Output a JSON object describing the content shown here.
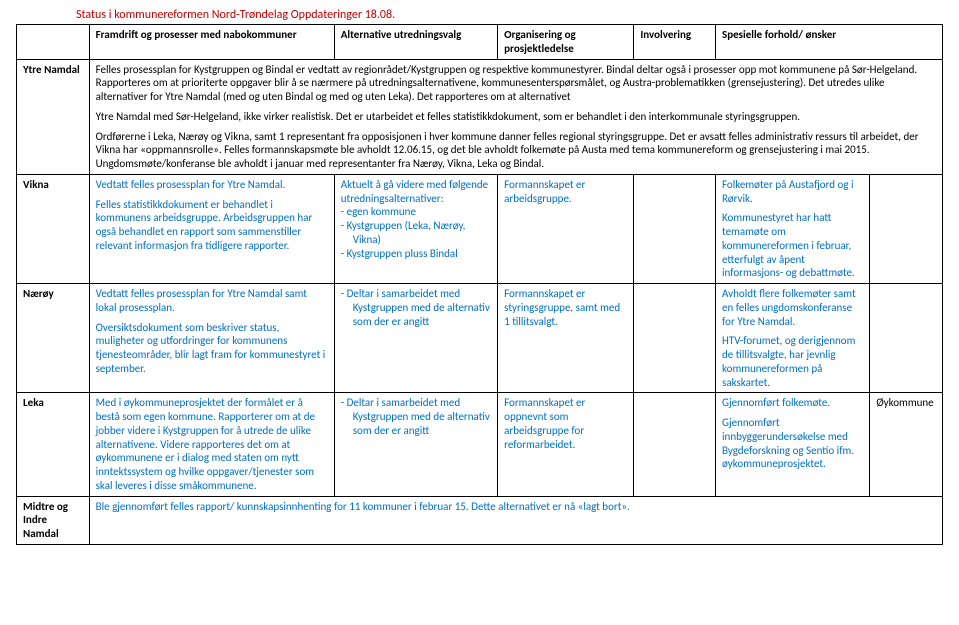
{
  "title": "Status i kommunereformen Nord-Trøndelag Oppdateringer 18.08.",
  "headers": {
    "label": "",
    "c1": "Framdrift og prosesser med nabokommuner",
    "c2": "Alternative utredningsvalg",
    "c3": "Organisering og prosjektledelse",
    "c4": "Involvering",
    "c5": "Spesielle forhold/ ønsker"
  },
  "rows": {
    "ytre": {
      "label": "Ytre Namdal",
      "full_p1": "Felles prosessplan for Kystgruppen og Bindal er vedtatt av regionrådet/Kystgruppen og respektive kommunestyrer. Bindal deltar også i prosesser opp mot kommunene på Sør-Helgeland. Rapporteres om at prioriterte oppgaver blir å se nærmere på utredningsalternativene, kommunesenterspørsmålet, og Austra-problematikken (grensejustering). Det utredes ulike alternativer for Ytre Namdal (med og uten Bindal og med og uten Leka). Det rapporteres om at alternativet",
      "full_p2": "Ytre Namdal med Sør-Helgeland, ikke virker realistisk. Det er utarbeidet et felles statistikkdokument, som er behandlet i den interkommunale styringsgruppen.",
      "full_p3": "Ordførerne i Leka, Nærøy og Vikna, samt 1 representant fra opposisjonen i hver kommune danner felles regional styringsgruppe. Det er avsatt felles administrativ ressurs til arbeidet, der Vikna har «oppmannsrolle». Felles formannskapsmøte ble avholdt 12.06.15, og det ble avholdt folkemøte på Austa med tema kommunereform og grensejustering i mai 2015. Ungdomsmøte/konferanse ble avholdt i januar med representanter fra Nærøy, Vikna, Leka og Bindal."
    },
    "vikna": {
      "label": "Vikna",
      "c1_p1": "Vedtatt felles prosessplan for Ytre Namdal.",
      "c1_p2": "Felles statistikkdokument er behandlet i kommunens arbeidsgruppe. Arbeidsgruppen har også behandlet en rapport som sammenstiller relevant informasjon fra tidligere rapporter.",
      "c2_intro": "Aktuelt å gå videre med følgende utredningsalternativer:",
      "c2_items": [
        "egen kommune",
        "Kystgruppen (Leka, Nærøy, Vikna)",
        "Kystgruppen pluss Bindal"
      ],
      "c3": "Formannskapet er arbeidsgruppe.",
      "c5_p1": "Folkemøter på Austafjord og i Rørvik.",
      "c5_p2": "Kommunestyret har hatt temamøte om kommunereformen i februar, etterfulgt av åpent informasjons- og debattmøte."
    },
    "naeroy": {
      "label": "Nærøy",
      "c1_p1": "Vedtatt felles prosessplan for Ytre Namdal samt lokal prosessplan.",
      "c1_p2": "Oversiktsdokument som beskriver status, muligheter og utfordringer for kommunens tjenesteområder, blir lagt fram for kommunestyret i september.",
      "c2_item": "Deltar i samarbeidet med Kystgruppen med de alternativ som der er angitt",
      "c3": "Formannskapet er styringsgruppe, samt med 1 tillitsvalgt.",
      "c5_p1": "Avholdt flere folkemøter samt en felles ungdomskonferanse for Ytre Namdal.",
      "c5_p2": "HTV-forumet, og derigjennom de tillitsvalgte, har jevnlig kommunereformen på sakskartet."
    },
    "leka": {
      "label": "Leka",
      "c1": "Med i øykommuneprosjektet der formålet er å bestå som egen kommune. Rapporterer om at de jobber videre i Kystgruppen for å utrede de ulike alternativene. Videre rapporteres det om at øykommunene er i dialog med staten om nytt inntektssystem og hvilke oppgaver/tjenester som skal leveres i disse småkommunene.",
      "c2_item": "Deltar i samarbeidet med Kystgruppen med de alternativ som der er angitt",
      "c3": "Formannskapet er oppnevnt som arbeidsgruppe for reformarbeidet.",
      "c5_p1": "Gjennomført folkemøte.",
      "c5_p2": "Gjennomført innbyggerundersøkelse med Bygdeforskning og Sentio ifm. øykommuneprosjektet.",
      "c6": "Øykommune"
    },
    "midtre": {
      "label": "Midtre og Indre Namdal",
      "full": "Ble gjennomført felles rapport/ kunnskapsinnhenting for 11 kommuner i februar 15. Dette alternativet er nå «lagt bort»."
    }
  }
}
